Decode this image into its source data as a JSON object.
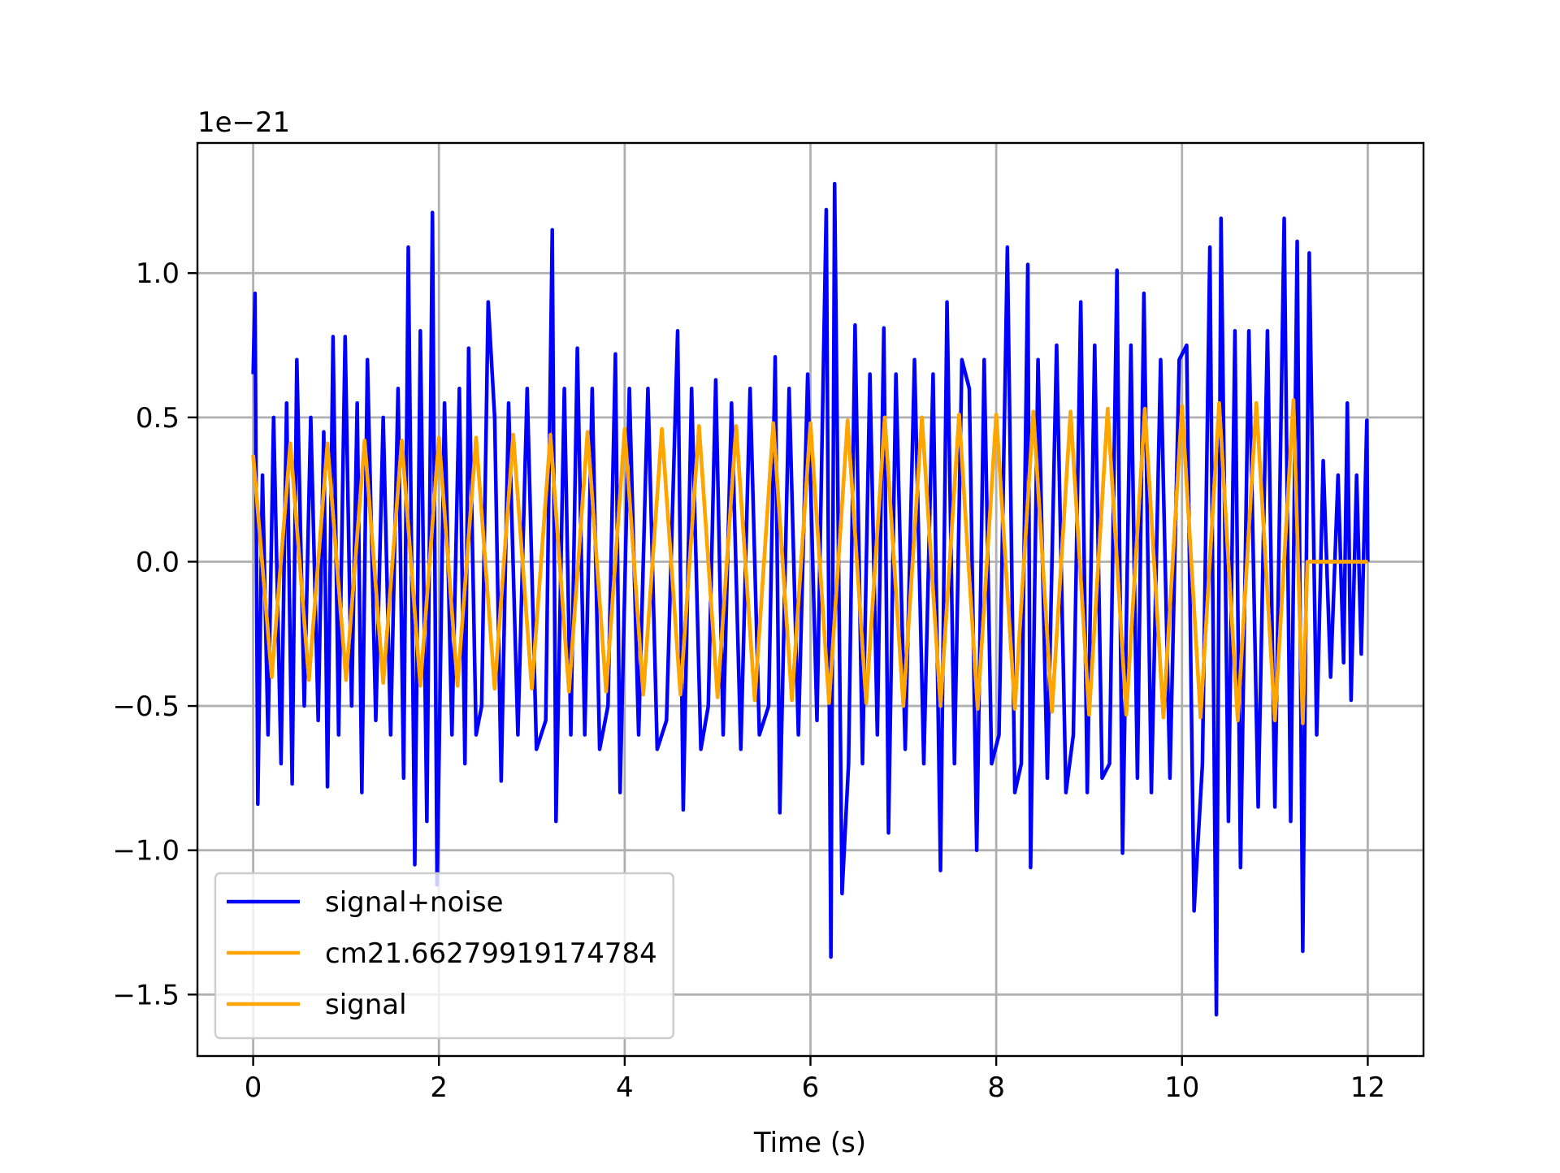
{
  "chart_data": {
    "type": "line",
    "offset_label": "1e−21",
    "x_label": "Time (s)",
    "xlim": [
      -0.6,
      12.6
    ],
    "xticks": [
      0,
      2,
      4,
      6,
      8,
      10,
      12
    ],
    "ylim": [
      -1.713,
      1.451
    ],
    "yticks": [
      {
        "value": -1.5,
        "label": "−1.5"
      },
      {
        "value": -1.0,
        "label": "−1.0"
      },
      {
        "value": -0.5,
        "label": "−0.5"
      },
      {
        "value": 0,
        "label": "0.0"
      },
      {
        "value": 0.5,
        "label": "0.5"
      },
      {
        "value": 1.0,
        "label": "1.0"
      }
    ],
    "grid": true,
    "legend": "lower left",
    "series": [
      {
        "name": "signal+noise",
        "color": "#0000ff",
        "x": [
          0,
          0.02,
          0.05,
          0.1,
          0.16,
          0.22,
          0.3,
          0.36,
          0.42,
          0.47,
          0.55,
          0.62,
          0.7,
          0.76,
          0.8,
          0.86,
          0.92,
          0.99,
          1.06,
          1.12,
          1.17,
          1.23,
          1.32,
          1.4,
          1.48,
          1.56,
          1.62,
          1.67,
          1.74,
          1.8,
          1.87,
          1.93,
          1.98,
          2.06,
          2.14,
          2.22,
          2.28,
          2.32,
          2.4,
          2.46,
          2.53,
          2.6,
          2.67,
          2.75,
          2.85,
          2.95,
          3.05,
          3.15,
          3.22,
          3.26,
          3.35,
          3.42,
          3.49,
          3.57,
          3.65,
          3.73,
          3.82,
          3.9,
          3.95,
          4.05,
          4.15,
          4.25,
          4.35,
          4.45,
          4.57,
          4.63,
          4.72,
          4.82,
          4.9,
          4.98,
          5.06,
          5.15,
          5.25,
          5.35,
          5.45,
          5.55,
          5.62,
          5.67,
          5.77,
          5.87,
          5.97,
          6.07,
          6.17,
          6.22,
          6.26,
          6.34,
          6.41,
          6.48,
          6.56,
          6.64,
          6.72,
          6.79,
          6.84,
          6.92,
          7.02,
          7.12,
          7.22,
          7.32,
          7.4,
          7.47,
          7.55,
          7.63,
          7.71,
          7.79,
          7.87,
          7.95,
          8.03,
          8.12,
          8.2,
          8.27,
          8.34,
          8.37,
          8.45,
          8.55,
          8.65,
          8.75,
          8.83,
          8.91,
          8.98,
          9.06,
          9.14,
          9.22,
          9.3,
          9.36,
          9.45,
          9.52,
          9.59,
          9.67,
          9.77,
          9.87,
          9.97,
          10.05,
          10.13,
          10.22,
          10.3,
          10.37,
          10.42,
          10.5,
          10.57,
          10.63,
          10.72,
          10.82,
          10.92,
          11.0,
          11.1,
          11.17,
          11.24,
          11.3,
          11.37,
          11.45,
          11.52,
          11.6,
          11.68,
          11.74,
          11.78,
          11.82,
          11.88,
          11.93,
          11.99,
          12.0
        ],
        "values": [
          0.65,
          0.93,
          -0.84,
          0.3,
          -0.6,
          0.5,
          -0.7,
          0.55,
          -0.77,
          0.7,
          -0.5,
          0.5,
          -0.55,
          0.45,
          -0.78,
          0.78,
          -0.6,
          0.78,
          -0.5,
          0.55,
          -0.8,
          0.7,
          -0.55,
          0.5,
          -0.6,
          0.6,
          -0.75,
          1.09,
          -1.05,
          0.8,
          -0.9,
          1.21,
          -1.12,
          0.55,
          -0.6,
          0.6,
          -0.7,
          0.74,
          -0.6,
          -0.5,
          0.9,
          0.5,
          -0.76,
          0.55,
          -0.6,
          0.6,
          -0.65,
          -0.55,
          1.15,
          -0.9,
          0.6,
          -0.6,
          0.74,
          -0.6,
          0.6,
          -0.65,
          -0.5,
          0.72,
          -0.8,
          0.6,
          -0.6,
          0.6,
          -0.65,
          -0.55,
          0.8,
          -0.86,
          0.6,
          -0.65,
          -0.5,
          0.63,
          -0.6,
          0.55,
          -0.65,
          0.6,
          -0.6,
          -0.5,
          0.71,
          -0.87,
          0.6,
          -0.6,
          0.65,
          -0.55,
          1.22,
          -1.37,
          1.31,
          -1.15,
          -0.7,
          0.82,
          -0.7,
          0.65,
          -0.6,
          0.81,
          -0.94,
          0.65,
          -0.65,
          0.7,
          -0.7,
          0.65,
          -1.07,
          0.9,
          -0.7,
          0.7,
          0.6,
          -1.0,
          0.7,
          -0.7,
          -0.6,
          1.09,
          -0.8,
          -0.7,
          1.03,
          -1.06,
          0.7,
          -0.75,
          0.75,
          -0.8,
          -0.6,
          0.9,
          -0.8,
          0.75,
          -0.75,
          -0.7,
          1.01,
          -1.01,
          0.75,
          -0.75,
          0.93,
          -0.8,
          0.7,
          -0.75,
          0.7,
          0.75,
          -1.21,
          -0.7,
          1.09,
          -1.57,
          1.19,
          -0.9,
          0.8,
          -1.06,
          0.8,
          -0.85,
          0.8,
          -0.85,
          1.19,
          -0.9,
          1.11,
          -1.35,
          1.07,
          -0.6,
          0.35,
          -0.4,
          0.3,
          -0.35,
          0.55,
          -0.48,
          0.3,
          -0.32,
          0.49,
          0.0
        ]
      },
      {
        "name": "cm21.66279919174784",
        "color": "#ffa500",
        "x": [
          0,
          0.2,
          0.4,
          0.6,
          0.8,
          1.0,
          1.2,
          1.4,
          1.6,
          1.8,
          2.0,
          2.2,
          2.4,
          2.6,
          2.8,
          3.0,
          3.2,
          3.4,
          3.6,
          3.8,
          4.0,
          4.2,
          4.4,
          4.6,
          4.8,
          5.0,
          5.2,
          5.4,
          5.6,
          5.8,
          6.0,
          6.2,
          6.4,
          6.6,
          6.8,
          7.0,
          7.2,
          7.4,
          7.6,
          7.8,
          8.0,
          8.2,
          8.4,
          8.6,
          8.8,
          9.0,
          9.2,
          9.4,
          9.6,
          9.8,
          10.0,
          10.2,
          10.4,
          10.6,
          10.8,
          11.0,
          11.2,
          11.3,
          11.35,
          12.0
        ],
        "values": [
          0.37,
          -0.4,
          0.41,
          -0.41,
          0.41,
          -0.41,
          0.42,
          -0.42,
          0.42,
          -0.43,
          0.43,
          -0.43,
          0.43,
          -0.44,
          0.44,
          -0.44,
          0.44,
          -0.45,
          0.45,
          -0.45,
          0.46,
          -0.46,
          0.46,
          -0.46,
          0.47,
          -0.47,
          0.47,
          -0.48,
          0.48,
          -0.48,
          0.48,
          -0.49,
          0.49,
          -0.49,
          0.5,
          -0.5,
          0.5,
          -0.5,
          0.51,
          -0.51,
          0.51,
          -0.51,
          0.52,
          -0.52,
          0.52,
          -0.53,
          0.53,
          -0.53,
          0.53,
          -0.54,
          0.54,
          -0.54,
          0.55,
          -0.55,
          0.55,
          -0.55,
          0.56,
          -0.56,
          0,
          0
        ]
      },
      {
        "name": "signal",
        "color": "#ffa500",
        "x": [
          0,
          0.2,
          0.4,
          0.6,
          0.8,
          1.0,
          1.2,
          1.4,
          1.6,
          1.8,
          2.0,
          2.2,
          2.4,
          2.6,
          2.8,
          3.0,
          3.2,
          3.4,
          3.6,
          3.8,
          4.0,
          4.2,
          4.4,
          4.6,
          4.8,
          5.0,
          5.2,
          5.4,
          5.6,
          5.8,
          6.0,
          6.2,
          6.4,
          6.6,
          6.8,
          7.0,
          7.2,
          7.4,
          7.6,
          7.8,
          8.0,
          8.2,
          8.4,
          8.6,
          8.8,
          9.0,
          9.2,
          9.4,
          9.6,
          9.8,
          10.0,
          10.2,
          10.4,
          10.6,
          10.8,
          11.0,
          11.2,
          11.3,
          11.35,
          12.0
        ],
        "values": [
          0.37,
          -0.4,
          0.41,
          -0.41,
          0.41,
          -0.41,
          0.42,
          -0.42,
          0.42,
          -0.43,
          0.43,
          -0.43,
          0.43,
          -0.44,
          0.44,
          -0.44,
          0.44,
          -0.45,
          0.45,
          -0.45,
          0.46,
          -0.46,
          0.46,
          -0.46,
          0.47,
          -0.47,
          0.47,
          -0.48,
          0.48,
          -0.48,
          0.48,
          -0.49,
          0.49,
          -0.49,
          0.5,
          -0.5,
          0.5,
          -0.5,
          0.51,
          -0.51,
          0.51,
          -0.51,
          0.52,
          -0.52,
          0.52,
          -0.53,
          0.53,
          -0.53,
          0.53,
          -0.54,
          0.54,
          -0.54,
          0.55,
          -0.55,
          0.55,
          -0.55,
          0.56,
          -0.56,
          0,
          0
        ]
      }
    ]
  }
}
